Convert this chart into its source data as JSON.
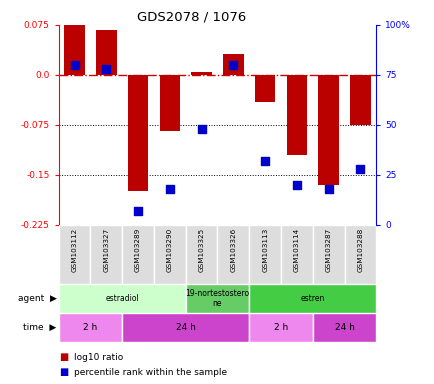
{
  "title": "GDS2078 / 1076",
  "samples": [
    "GSM103112",
    "GSM103327",
    "GSM103289",
    "GSM103290",
    "GSM103325",
    "GSM103326",
    "GSM103113",
    "GSM103114",
    "GSM103287",
    "GSM103288"
  ],
  "log10_ratio": [
    0.075,
    0.068,
    -0.175,
    -0.085,
    0.005,
    0.032,
    -0.04,
    -0.12,
    -0.165,
    -0.075
  ],
  "percentile_rank": [
    0.8,
    0.78,
    0.07,
    0.18,
    0.48,
    0.8,
    0.32,
    0.2,
    0.18,
    0.28
  ],
  "ylim": [
    -0.225,
    0.075
  ],
  "yticks_left": [
    0.075,
    0.0,
    -0.075,
    -0.15,
    -0.225
  ],
  "yticks_right_vals": [
    1.0,
    0.75,
    0.5,
    0.25,
    0.0
  ],
  "yticks_right_labels": [
    "100%",
    "75",
    "50",
    "25",
    "0"
  ],
  "bar_color": "#bb0000",
  "dot_color": "#0000cc",
  "bar_width": 0.65,
  "agent_groups": [
    {
      "label": "estradiol",
      "start": 0,
      "end": 4,
      "color": "#ccffcc"
    },
    {
      "label": "19-nortestostero\nne",
      "start": 4,
      "end": 6,
      "color": "#66cc66"
    },
    {
      "label": "estren",
      "start": 6,
      "end": 10,
      "color": "#44cc44"
    }
  ],
  "time_groups": [
    {
      "label": "2 h",
      "start": 0,
      "end": 2,
      "color": "#ee88ee"
    },
    {
      "label": "24 h",
      "start": 2,
      "end": 6,
      "color": "#cc44cc"
    },
    {
      "label": "2 h",
      "start": 6,
      "end": 8,
      "color": "#ee88ee"
    },
    {
      "label": "24 h",
      "start": 8,
      "end": 10,
      "color": "#cc44cc"
    }
  ]
}
